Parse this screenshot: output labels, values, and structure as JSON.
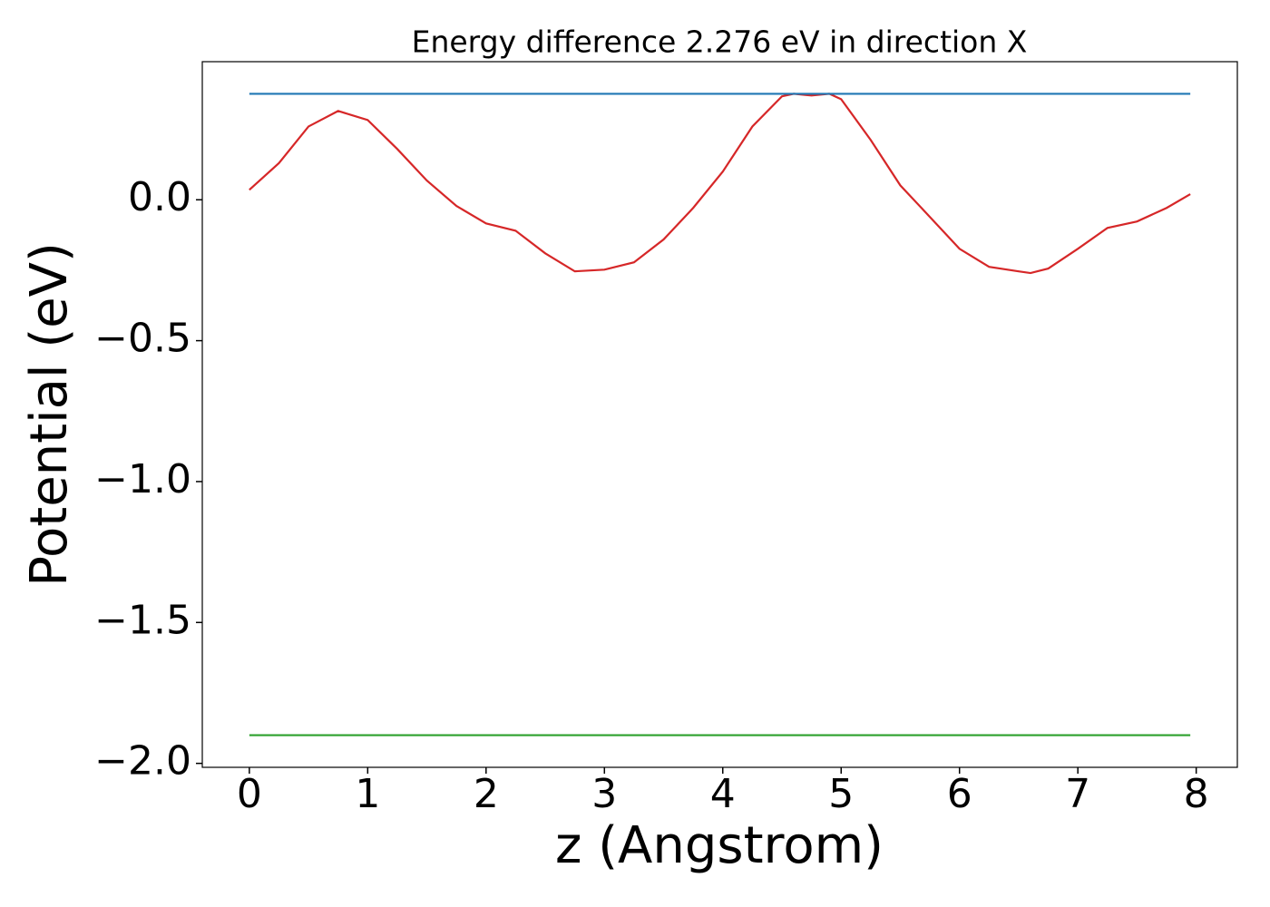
{
  "chart_data": {
    "type": "line",
    "title": "Energy difference 2.276 eV in direction X",
    "x_label": "z (Angstrom)",
    "y_label": "Potential (eV)",
    "xlim": [
      -0.3975,
      8.3475
    ],
    "ylim": [
      -2.014,
      0.49
    ],
    "xticks": [
      0,
      1,
      2,
      3,
      4,
      5,
      6,
      7,
      8
    ],
    "yticks": [
      {
        "value": 0.0,
        "label": "0.0"
      },
      {
        "value": -0.5,
        "label": "−0.5"
      },
      {
        "value": -1.0,
        "label": "−1.0"
      },
      {
        "value": -1.5,
        "label": "−1.5"
      },
      {
        "value": -2.0,
        "label": "−2.0"
      }
    ],
    "series": [
      {
        "color": "#d62728",
        "x": [
          0,
          0.25,
          0.5,
          0.75,
          1.0,
          1.25,
          1.5,
          1.75,
          2.0,
          2.25,
          2.5,
          2.75,
          3.0,
          3.25,
          3.5,
          3.75,
          4.0,
          4.25,
          4.5,
          4.6,
          4.75,
          4.9,
          5.0,
          5.25,
          5.5,
          5.75,
          6.0,
          6.25,
          6.5,
          6.6,
          6.75,
          7.0,
          7.25,
          7.5,
          7.75,
          7.95
        ],
        "values": [
          0.035,
          0.13,
          0.26,
          0.315,
          0.283,
          0.18,
          0.068,
          -0.022,
          -0.084,
          -0.11,
          -0.19,
          -0.254,
          -0.248,
          -0.222,
          -0.141,
          -0.029,
          0.1,
          0.26,
          0.367,
          0.376,
          0.37,
          0.376,
          0.357,
          0.212,
          0.051,
          -0.061,
          -0.174,
          -0.238,
          -0.254,
          -0.26,
          -0.244,
          -0.174,
          -0.1,
          -0.077,
          -0.029,
          0.02
        ]
      },
      {
        "color": "#1f77b4",
        "x": [
          0,
          7.95
        ],
        "values": [
          0.376,
          0.376
        ]
      },
      {
        "color": "#2ca02c",
        "x": [
          0,
          7.95
        ],
        "values": [
          -1.9,
          -1.9
        ]
      }
    ]
  }
}
